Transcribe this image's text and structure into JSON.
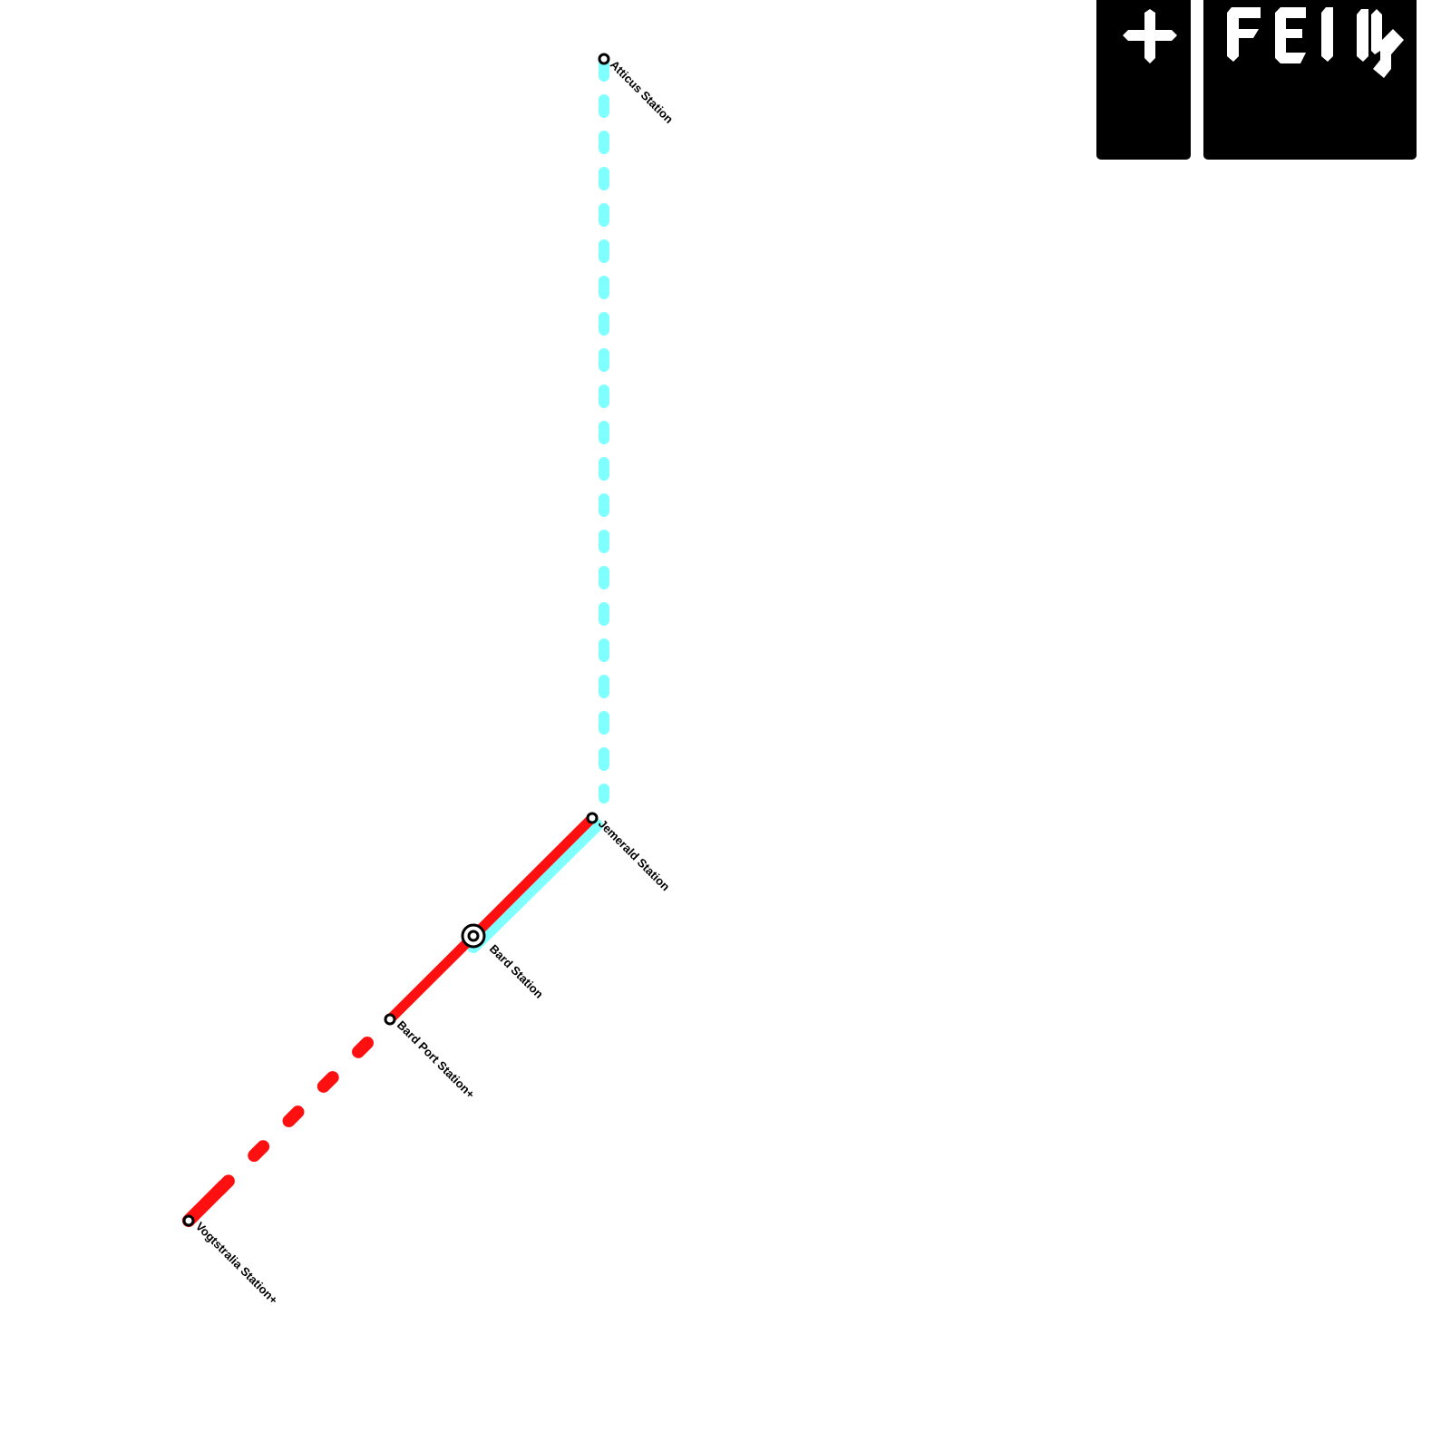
{
  "stations": [
    {
      "name": "Atticus Station"
    },
    {
      "name": "Jemerald Station"
    },
    {
      "name": "Bard Station"
    },
    {
      "name": "Bard Port Station+"
    },
    {
      "name": "Vogtstralia Station+"
    }
  ]
}
